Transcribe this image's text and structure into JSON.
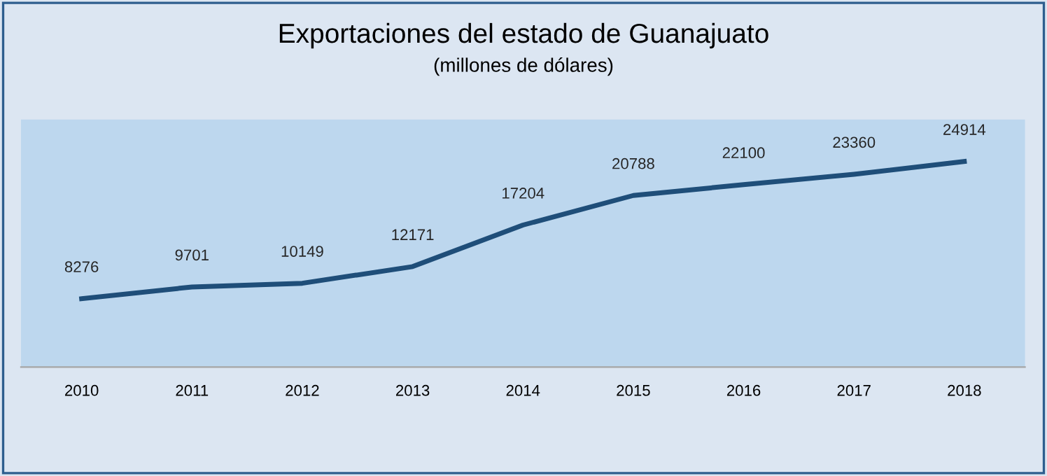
{
  "chart_data": {
    "type": "line",
    "title": "Exportaciones del estado de Guanajuato",
    "subtitle": "(millones de dólares)",
    "categories": [
      "2010",
      "2011",
      "2012",
      "2013",
      "2014",
      "2015",
      "2016",
      "2017",
      "2018"
    ],
    "series": [
      {
        "color": "#1f4e79",
        "values": [
          8276,
          9701,
          10149,
          12171,
          17204,
          20788,
          22100,
          23360,
          24914
        ]
      }
    ],
    "ylim": [
      0,
      30000
    ],
    "data_labels": true,
    "grid": false,
    "legend": false,
    "marker": "none",
    "line_style": "solid",
    "tick_labels": "x"
  }
}
